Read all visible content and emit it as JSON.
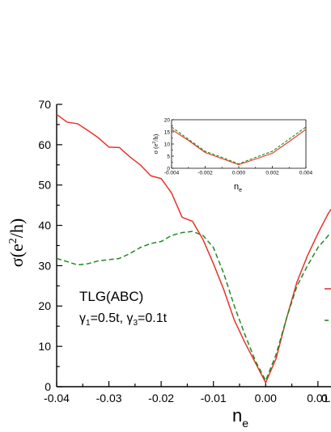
{
  "chart_data": [
    {
      "type": "line",
      "xlabel_main": "n",
      "xlabel_sub": "e",
      "ylabel_pre": "σ(e",
      "ylabel_sup": "2",
      "ylabel_post": "/h)",
      "xlim": [
        -0.04,
        0.0125
      ],
      "ylim": [
        0,
        70
      ],
      "xticks": [
        -0.04,
        -0.03,
        -0.02,
        -0.01,
        0.0,
        0.01
      ],
      "xtick_labels": [
        "-0.04",
        "-0.03",
        "-0.02",
        "-0.01",
        "0.00",
        "0.01"
      ],
      "xtick_clipped_label": "0.",
      "yticks": [
        0,
        10,
        20,
        30,
        40,
        50,
        60,
        70
      ],
      "ytick_labels": [
        "0",
        "10",
        "20",
        "30",
        "40",
        "50",
        "60",
        "70"
      ],
      "annotation": {
        "line1": "TLG(ABC)",
        "g1_sym": "γ",
        "g1_sub": "1",
        "g1_val": "=0.5t, ",
        "g3_sym": "γ",
        "g3_sub": "3",
        "g3_val": "=0.1t"
      },
      "series": [
        {
          "style": "solid",
          "color": "#e8332a",
          "x": [
            -0.04,
            -0.038,
            -0.036,
            -0.034,
            -0.032,
            -0.03,
            -0.028,
            -0.026,
            -0.024,
            -0.022,
            -0.02,
            -0.018,
            -0.016,
            -0.014,
            -0.012,
            -0.01,
            -0.008,
            -0.006,
            -0.004,
            -0.002,
            0.0,
            0.002,
            0.004,
            0.006,
            0.008,
            0.01,
            0.012,
            0.0125
          ],
          "y": [
            67.5,
            65.6,
            65.2,
            63.5,
            61.7,
            59.4,
            59.3,
            57.0,
            55.0,
            52.3,
            51.6,
            48.0,
            42.0,
            41.0,
            36.5,
            30.5,
            24.0,
            16.5,
            11.0,
            6.0,
            1.0,
            7.0,
            17.0,
            26.0,
            32.5,
            38.0,
            43.0,
            44.0
          ]
        },
        {
          "style": "dashed",
          "color": "#1f8a1f",
          "x": [
            -0.04,
            -0.038,
            -0.036,
            -0.034,
            -0.032,
            -0.03,
            -0.028,
            -0.026,
            -0.024,
            -0.022,
            -0.02,
            -0.018,
            -0.016,
            -0.014,
            -0.012,
            -0.01,
            -0.008,
            -0.006,
            -0.004,
            -0.002,
            0.0,
            0.002,
            0.004,
            0.006,
            0.008,
            0.01,
            0.012,
            0.0125
          ],
          "y": [
            31.8,
            31.0,
            30.2,
            30.5,
            31.2,
            31.5,
            31.8,
            33.0,
            34.5,
            35.5,
            36.0,
            37.5,
            38.2,
            38.5,
            37.5,
            34.5,
            28.0,
            20.0,
            13.0,
            6.5,
            1.5,
            8.0,
            17.0,
            25.0,
            30.0,
            34.5,
            37.5,
            38.0
          ]
        }
      ],
      "legend_hint": "right edge, entries clipped"
    },
    {
      "type": "line",
      "role": "inset",
      "xlabel_main": "n",
      "xlabel_sub": "e",
      "ylabel_pre": "σ (e",
      "ylabel_sup": "2",
      "ylabel_post": "/h)",
      "xlim": [
        -0.004,
        0.004
      ],
      "ylim": [
        0,
        20
      ],
      "xticks": [
        -0.004,
        -0.002,
        0.0,
        0.002,
        0.004
      ],
      "xtick_labels": [
        "-0.004",
        "-0.002",
        "0.000",
        "0.002",
        "0.004"
      ],
      "yticks": [
        0,
        5,
        10,
        15,
        20
      ],
      "ytick_labels": [
        "0",
        "5",
        "10",
        "15",
        "20"
      ],
      "series": [
        {
          "style": "solid",
          "color": "#e8332a",
          "x": [
            -0.004,
            -0.003,
            -0.002,
            -0.001,
            0.0,
            0.001,
            0.002,
            0.003,
            0.004
          ],
          "y": [
            16.0,
            11.5,
            6.5,
            4.0,
            1.5,
            3.8,
            6.2,
            11.0,
            16.0
          ]
        },
        {
          "style": "dashed",
          "color": "#1f8a1f",
          "x": [
            -0.004,
            -0.003,
            -0.002,
            -0.001,
            0.0,
            0.001,
            0.002,
            0.003,
            0.004
          ],
          "y": [
            17.0,
            12.0,
            7.0,
            4.5,
            1.8,
            4.5,
            7.0,
            12.0,
            17.0
          ]
        }
      ]
    }
  ]
}
